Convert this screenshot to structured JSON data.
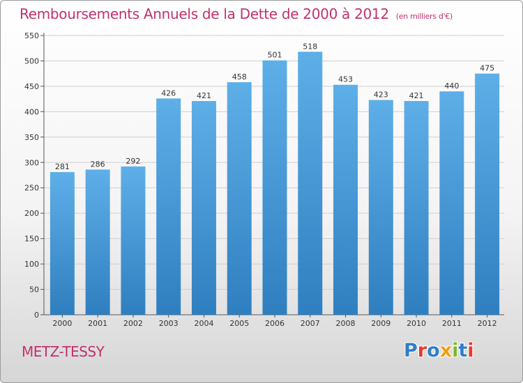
{
  "header": {
    "title": "Remboursements Annuels de la Dette de 2000 à 2012",
    "unit": "(en milliers d'€)"
  },
  "footer": {
    "commune": "METZ-TESSY",
    "logo_text": "Proxiti",
    "logo_colors": [
      "#2f7fc8",
      "#e8382a",
      "#2f7fc8",
      "#f39c12",
      "#7ab929",
      "#2f7fc8",
      "#e8382a"
    ]
  },
  "colors": {
    "bar": "#4f9fdc",
    "accent": "#c0316e",
    "grid": "#cfcfcf"
  },
  "chart_data": {
    "type": "bar",
    "title": "Remboursements Annuels de la Dette de 2000 à 2012",
    "xlabel": "",
    "ylabel": "",
    "categories": [
      "2000",
      "2001",
      "2002",
      "2003",
      "2004",
      "2005",
      "2006",
      "2007",
      "2008",
      "2009",
      "2010",
      "2011",
      "2012"
    ],
    "values": [
      281,
      286,
      292,
      426,
      421,
      458,
      501,
      518,
      453,
      423,
      421,
      440,
      475
    ],
    "ylim": [
      0,
      550
    ],
    "yticks": [
      0,
      50,
      100,
      150,
      200,
      250,
      300,
      350,
      400,
      450,
      500,
      550
    ],
    "grid": true,
    "data_labels": true
  }
}
